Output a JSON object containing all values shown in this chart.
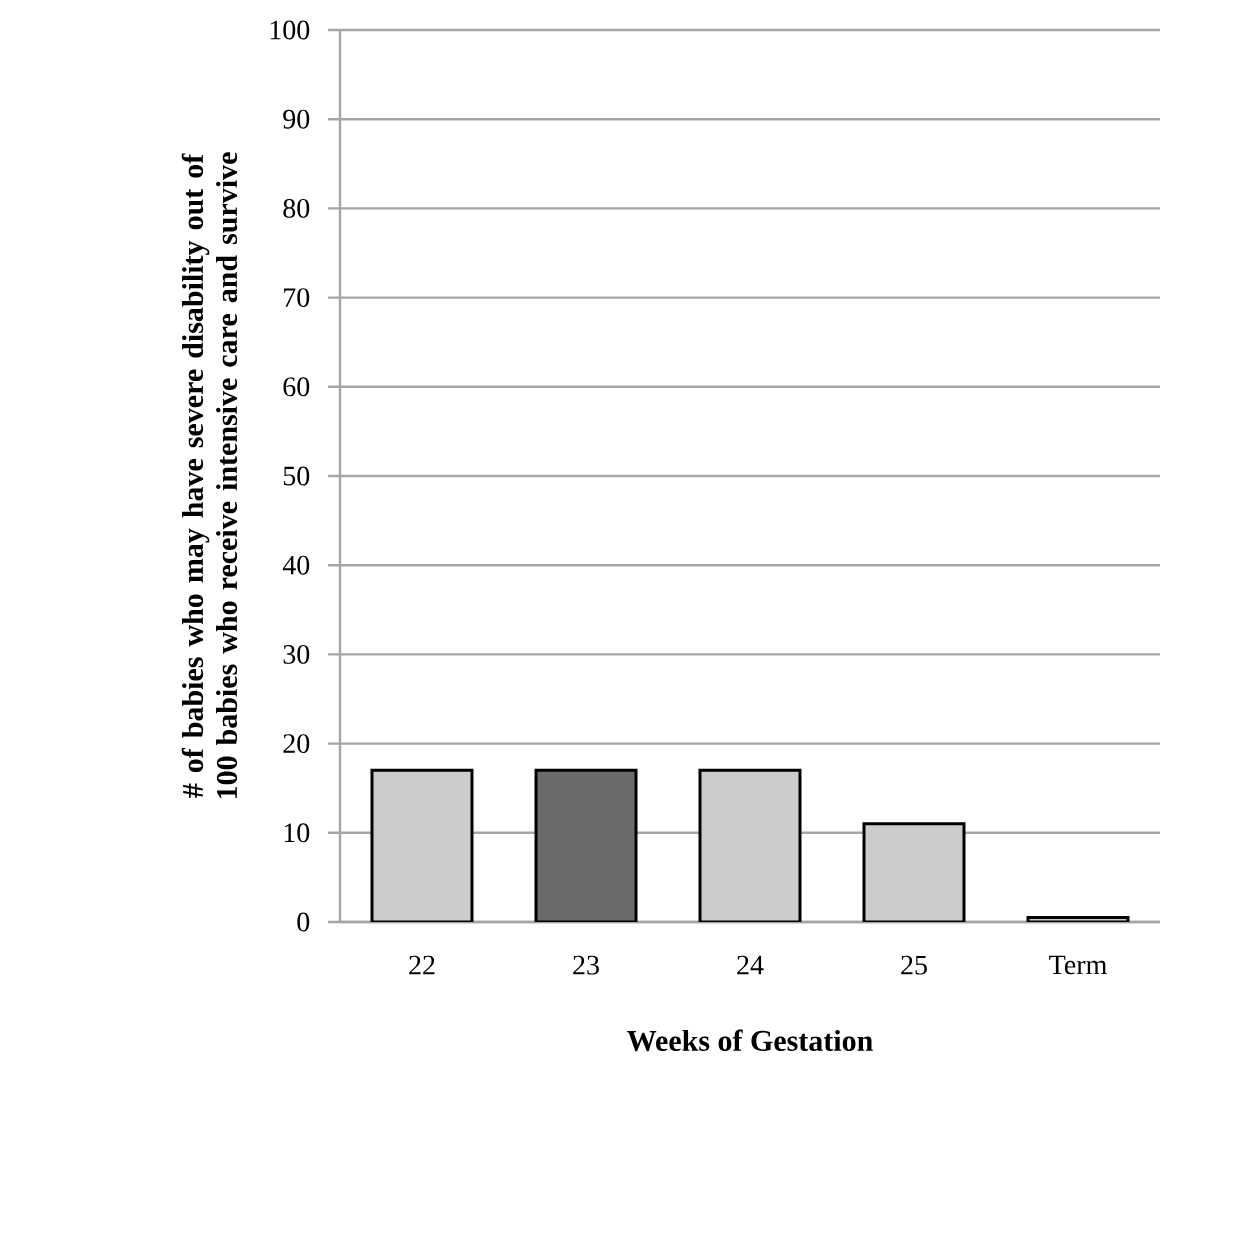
{
  "chart_data": {
    "type": "bar",
    "xlabel": "Weeks of Gestation",
    "ylabel": "# of babies who may have severe disability out of 100 babies who receive intensive care and survive",
    "categories": [
      "22",
      "23",
      "24",
      "25",
      "Term"
    ],
    "values": [
      17,
      17,
      17,
      11,
      0.5
    ],
    "colors": [
      "#cccccc",
      "#6b6b6b",
      "#cccccc",
      "#cccccc",
      "#cccccc"
    ],
    "ylim": [
      0,
      100
    ],
    "yticks": [
      0,
      10,
      20,
      30,
      40,
      50,
      60,
      70,
      80,
      90,
      100
    ],
    "grid": "y"
  }
}
